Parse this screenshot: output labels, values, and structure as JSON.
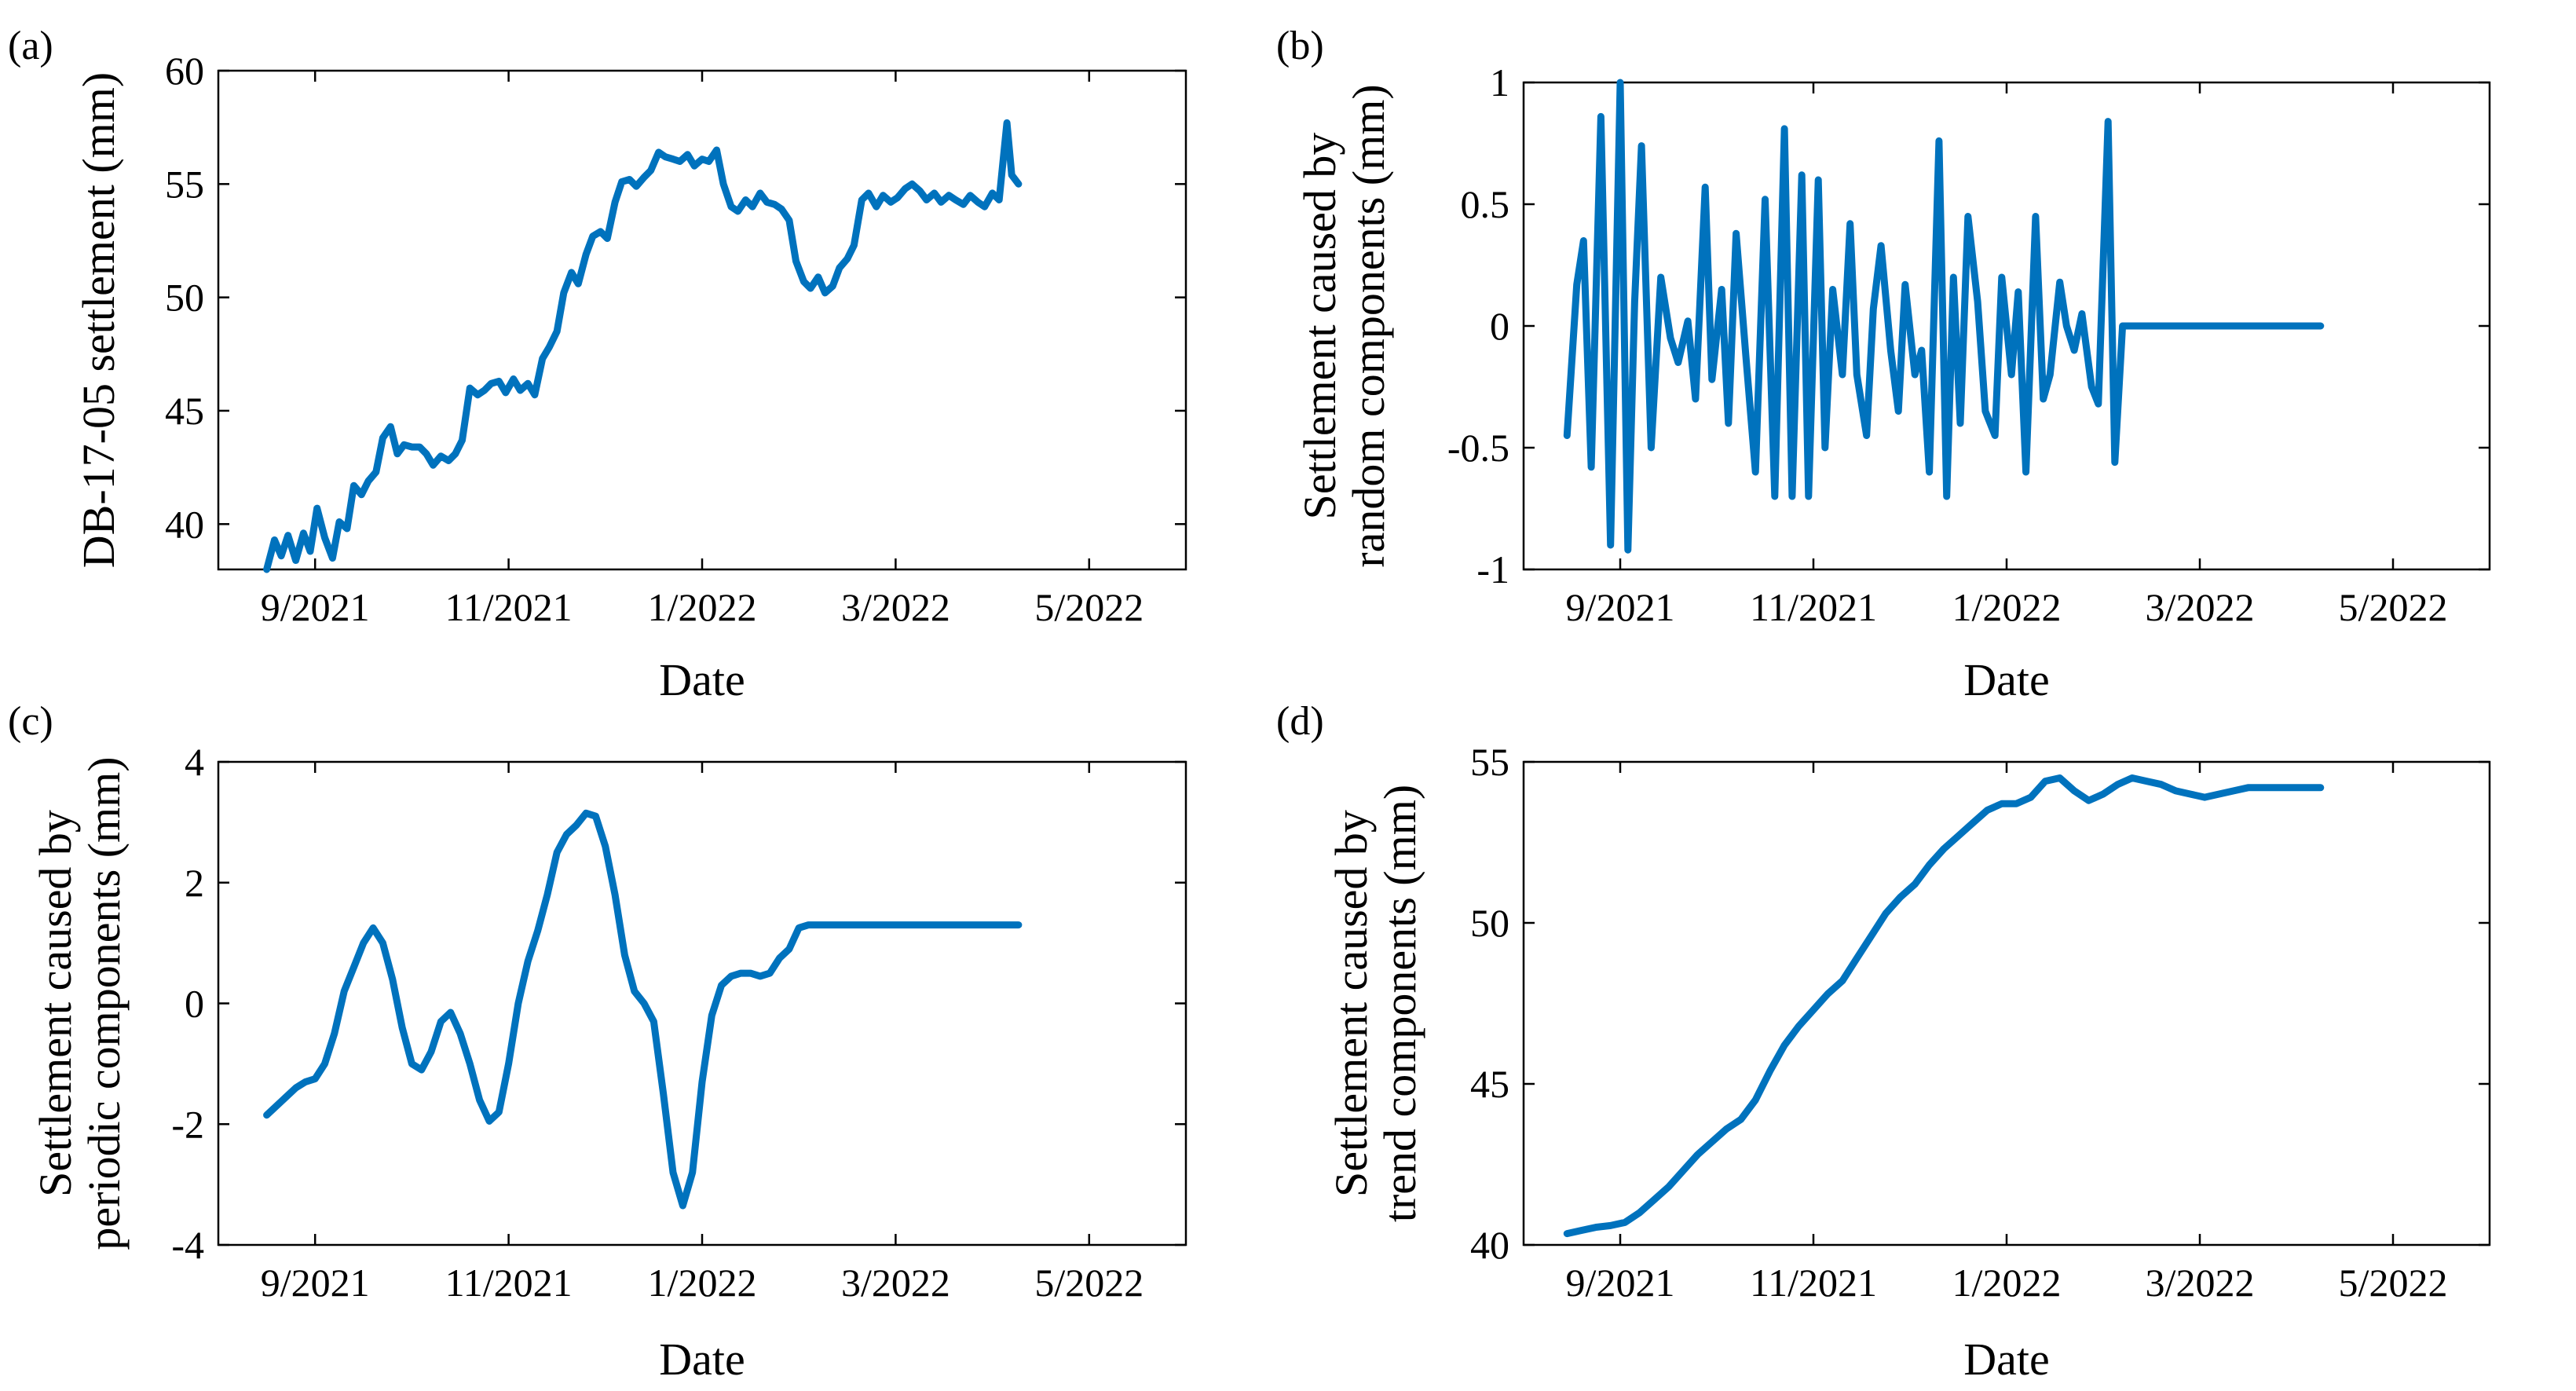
{
  "figure": {
    "series_color": "#0072BD",
    "panels": [
      {
        "label": "(a)",
        "ylabel": [
          "DB-17-05 settlement (mm)"
        ]
      },
      {
        "label": "(b)",
        "ylabel": [
          "Settlement caused by",
          "random components (mm)"
        ]
      },
      {
        "label": "(c)",
        "ylabel": [
          "Settlement caused by",
          "periodic components (mm)"
        ]
      },
      {
        "label": "(d)",
        "ylabel": [
          "Settlement caused by",
          "trend components (mm)"
        ]
      }
    ]
  },
  "chart_data": [
    {
      "type": "line",
      "panel": "(a)",
      "title": "",
      "xlabel": "Date",
      "ylabel": "DB-17-05 settlement (mm)",
      "x_ticks": [
        0,
        2,
        4,
        6,
        8,
        10
      ],
      "x_tick_labels": [
        "9/2021",
        "11/2021",
        "1/2022",
        "3/2022",
        "5/2022"
      ],
      "x_tick_values": [
        1,
        3,
        5,
        7,
        9
      ],
      "xlim": [
        0,
        10
      ],
      "ylim": [
        38,
        60
      ],
      "y_ticks": [
        40,
        45,
        50,
        55,
        60
      ],
      "grid": false,
      "series": [
        {
          "name": "DB-17-05 settlement",
          "x": [
            0.5,
            0.58,
            0.65,
            0.72,
            0.8,
            0.88,
            0.95,
            1.02,
            1.1,
            1.18,
            1.25,
            1.33,
            1.4,
            1.48,
            1.55,
            1.63,
            1.7,
            1.78,
            1.85,
            1.92,
            2.0,
            2.08,
            2.15,
            2.22,
            2.3,
            2.38,
            2.45,
            2.52,
            2.6,
            2.68,
            2.75,
            2.82,
            2.9,
            2.97,
            3.05,
            3.12,
            3.2,
            3.27,
            3.35,
            3.42,
            3.5,
            3.57,
            3.65,
            3.72,
            3.8,
            3.87,
            3.95,
            4.02,
            4.1,
            4.17,
            4.25,
            4.32,
            4.4,
            4.47,
            4.55,
            4.62,
            4.7,
            4.77,
            4.85,
            4.92,
            5.0,
            5.07,
            5.15,
            5.22,
            5.3,
            5.37,
            5.45,
            5.52,
            5.6,
            5.67,
            5.75,
            5.82,
            5.9,
            5.97,
            6.05,
            6.12,
            6.2,
            6.27,
            6.35,
            6.42,
            6.5,
            6.57,
            6.65,
            6.72,
            6.8,
            6.87,
            6.95,
            7.02,
            7.1,
            7.17,
            7.25,
            7.32,
            7.4,
            7.47,
            7.55,
            7.62,
            7.7,
            7.77,
            7.85,
            7.92,
            8.0,
            8.07,
            8.15,
            8.2,
            8.27
          ],
          "y": [
            38.0,
            39.3,
            38.6,
            39.5,
            38.4,
            39.6,
            38.8,
            40.7,
            39.4,
            38.5,
            40.1,
            39.8,
            41.7,
            41.3,
            41.9,
            42.3,
            43.8,
            44.3,
            43.1,
            43.5,
            43.4,
            43.4,
            43.1,
            42.6,
            43.0,
            42.8,
            43.1,
            43.7,
            46.0,
            45.7,
            45.9,
            46.2,
            46.3,
            45.8,
            46.4,
            45.9,
            46.2,
            45.7,
            47.3,
            47.8,
            48.5,
            50.2,
            51.1,
            50.6,
            51.9,
            52.7,
            52.9,
            52.6,
            54.2,
            55.1,
            55.2,
            54.9,
            55.3,
            55.6,
            56.4,
            56.2,
            56.1,
            56.0,
            56.3,
            55.8,
            56.1,
            56.0,
            56.5,
            55.0,
            54.0,
            53.8,
            54.3,
            54.0,
            54.6,
            54.2,
            54.1,
            53.9,
            53.4,
            51.6,
            50.7,
            50.4,
            50.9,
            50.2,
            50.5,
            51.3,
            51.7,
            52.3,
            54.3,
            54.6,
            54.0,
            54.5,
            54.2,
            54.4,
            54.8,
            55.0,
            54.7,
            54.3,
            54.6,
            54.2,
            54.5,
            54.3,
            54.1,
            54.5,
            54.2,
            54.0,
            54.6,
            54.3,
            57.7,
            55.4,
            55.0
          ]
        }
      ]
    },
    {
      "type": "line",
      "panel": "(b)",
      "title": "",
      "xlabel": "Date",
      "ylabel": "Settlement caused by random components (mm)",
      "x_tick_labels": [
        "9/2021",
        "11/2021",
        "1/2022",
        "3/2022",
        "5/2022"
      ],
      "x_tick_values": [
        1,
        3,
        5,
        7,
        9
      ],
      "xlim": [
        0,
        10
      ],
      "ylim": [
        -1,
        1
      ],
      "y_ticks": [
        -1,
        -0.5,
        0,
        0.5,
        1
      ],
      "y_tick_labels": [
        "-1",
        "-0.5",
        "0",
        "0.5",
        "1"
      ],
      "grid": false,
      "series": [
        {
          "name": "random components",
          "x": [
            0.45,
            0.55,
            0.62,
            0.7,
            0.8,
            0.9,
            1.0,
            1.08,
            1.15,
            1.22,
            1.32,
            1.42,
            1.52,
            1.6,
            1.7,
            1.78,
            1.88,
            1.95,
            2.05,
            2.12,
            2.2,
            2.3,
            2.4,
            2.5,
            2.6,
            2.7,
            2.78,
            2.88,
            2.95,
            3.05,
            3.12,
            3.2,
            3.3,
            3.38,
            3.45,
            3.55,
            3.62,
            3.7,
            3.8,
            3.88,
            3.95,
            4.05,
            4.12,
            4.2,
            4.3,
            4.38,
            4.45,
            4.52,
            4.6,
            4.7,
            4.78,
            4.88,
            4.95,
            5.05,
            5.12,
            5.2,
            5.3,
            5.38,
            5.45,
            5.55,
            5.62,
            5.7,
            5.78,
            5.88,
            5.95,
            6.05,
            6.12,
            6.2,
            6.3,
            6.38,
            6.45,
            6.52,
            6.6,
            6.68,
            6.75,
            6.85,
            6.92,
            7.0,
            7.08,
            7.15,
            7.22,
            7.3,
            7.38,
            7.45,
            7.52,
            7.6,
            7.68,
            7.75,
            7.85,
            7.92,
            8.0,
            8.08,
            8.15,
            8.25
          ],
          "y": [
            -0.45,
            0.17,
            0.35,
            -0.58,
            0.86,
            -0.9,
            1.0,
            -0.92,
            0.1,
            0.74,
            -0.5,
            0.2,
            -0.05,
            -0.15,
            0.02,
            -0.3,
            0.57,
            -0.22,
            0.15,
            -0.4,
            0.38,
            -0.12,
            -0.6,
            0.52,
            -0.7,
            0.81,
            -0.7,
            0.62,
            -0.7,
            0.6,
            -0.5,
            0.15,
            -0.2,
            0.42,
            -0.2,
            -0.45,
            0.07,
            0.33,
            -0.1,
            -0.35,
            0.17,
            -0.2,
            -0.1,
            -0.6,
            0.76,
            -0.7,
            0.2,
            -0.4,
            0.45,
            0.1,
            -0.35,
            -0.45,
            0.2,
            -0.2,
            0.14,
            -0.6,
            0.45,
            -0.3,
            -0.2,
            0.18,
            0.0,
            -0.1,
            0.05,
            -0.25,
            -0.32,
            0.84,
            -0.56,
            0.0,
            0.0,
            0.0,
            0.0,
            0.0,
            0.0,
            0.0,
            0.0,
            0.0,
            0.0,
            0.0,
            0.0,
            0.0,
            0.0,
            0.0,
            0.0,
            0.0,
            0.0,
            0.0,
            0.0,
            0.0,
            0.0,
            0.0,
            0.0,
            0.0,
            0.0,
            0.0
          ]
        }
      ]
    },
    {
      "type": "line",
      "panel": "(c)",
      "title": "",
      "xlabel": "Date",
      "ylabel": "Settlement caused by periodic components (mm)",
      "x_tick_labels": [
        "9/2021",
        "11/2021",
        "1/2022",
        "3/2022",
        "5/2022"
      ],
      "x_tick_values": [
        1,
        3,
        5,
        7,
        9
      ],
      "xlim": [
        0,
        10
      ],
      "ylim": [
        -4,
        4
      ],
      "y_ticks": [
        -4,
        -2,
        0,
        2,
        4
      ],
      "grid": false,
      "series": [
        {
          "name": "periodic components",
          "x": [
            0.5,
            0.6,
            0.7,
            0.8,
            0.9,
            1.0,
            1.1,
            1.2,
            1.3,
            1.4,
            1.5,
            1.6,
            1.7,
            1.8,
            1.9,
            2.0,
            2.1,
            2.2,
            2.3,
            2.4,
            2.5,
            2.6,
            2.7,
            2.8,
            2.9,
            3.0,
            3.1,
            3.2,
            3.3,
            3.4,
            3.5,
            3.6,
            3.7,
            3.8,
            3.9,
            4.0,
            4.1,
            4.2,
            4.3,
            4.4,
            4.5,
            4.6,
            4.7,
            4.8,
            4.9,
            5.0,
            5.1,
            5.2,
            5.3,
            5.4,
            5.5,
            5.6,
            5.7,
            5.8,
            5.9,
            6.0,
            6.1,
            6.2,
            6.3,
            6.4,
            6.5,
            6.6,
            6.7,
            6.8,
            6.9,
            7.0,
            7.1,
            7.2,
            7.3,
            7.4,
            7.5,
            7.6,
            7.7,
            7.8,
            7.9,
            8.0,
            8.1,
            8.2,
            8.27
          ],
          "y": [
            -1.85,
            -1.7,
            -1.55,
            -1.4,
            -1.3,
            -1.25,
            -1.0,
            -0.5,
            0.2,
            0.6,
            1.0,
            1.25,
            1.0,
            0.4,
            -0.4,
            -1.0,
            -1.1,
            -0.8,
            -0.3,
            -0.15,
            -0.5,
            -1.0,
            -1.6,
            -1.95,
            -1.8,
            -1.0,
            0.0,
            0.7,
            1.2,
            1.8,
            2.5,
            2.8,
            2.95,
            3.15,
            3.1,
            2.6,
            1.8,
            0.8,
            0.2,
            0.0,
            -0.3,
            -1.5,
            -2.8,
            -3.35,
            -2.8,
            -1.3,
            -0.2,
            0.3,
            0.45,
            0.5,
            0.5,
            0.45,
            0.5,
            0.75,
            0.9,
            1.25,
            1.3,
            1.3,
            1.3,
            1.3,
            1.3,
            1.3,
            1.3,
            1.3,
            1.3,
            1.3,
            1.3,
            1.3,
            1.3,
            1.3,
            1.3,
            1.3,
            1.3,
            1.3,
            1.3,
            1.3,
            1.3,
            1.3,
            1.3
          ]
        }
      ]
    },
    {
      "type": "line",
      "panel": "(d)",
      "title": "",
      "xlabel": "Date",
      "ylabel": "Settlement caused by trend components (mm)",
      "x_tick_labels": [
        "9/2021",
        "11/2021",
        "1/2022",
        "3/2022",
        "5/2022"
      ],
      "x_tick_values": [
        1,
        3,
        5,
        7,
        9
      ],
      "xlim": [
        0,
        10
      ],
      "ylim": [
        40,
        55
      ],
      "y_ticks": [
        40,
        45,
        50,
        55
      ],
      "grid": false,
      "series": [
        {
          "name": "trend components",
          "x": [
            0.45,
            0.6,
            0.75,
            0.9,
            1.05,
            1.2,
            1.35,
            1.5,
            1.65,
            1.8,
            1.95,
            2.1,
            2.25,
            2.4,
            2.55,
            2.7,
            2.85,
            3.0,
            3.15,
            3.3,
            3.45,
            3.6,
            3.75,
            3.9,
            4.05,
            4.2,
            4.35,
            4.5,
            4.65,
            4.8,
            4.95,
            5.1,
            5.25,
            5.4,
            5.55,
            5.7,
            5.85,
            6.0,
            6.15,
            6.3,
            6.45,
            6.6,
            6.75,
            6.9,
            7.05,
            7.2,
            7.35,
            7.5,
            7.65,
            7.8,
            7.95,
            8.1,
            8.25
          ],
          "y": [
            40.35,
            40.45,
            40.55,
            40.6,
            40.7,
            41.0,
            41.4,
            41.8,
            42.3,
            42.8,
            43.2,
            43.6,
            43.9,
            44.5,
            45.4,
            46.2,
            46.8,
            47.3,
            47.8,
            48.2,
            48.9,
            49.6,
            50.3,
            50.8,
            51.2,
            51.8,
            52.3,
            52.7,
            53.1,
            53.5,
            53.7,
            53.7,
            53.9,
            54.4,
            54.5,
            54.1,
            53.8,
            54.0,
            54.3,
            54.5,
            54.4,
            54.3,
            54.1,
            54.0,
            53.9,
            54.0,
            54.1,
            54.2,
            54.2,
            54.2,
            54.2,
            54.2,
            54.2
          ]
        }
      ]
    }
  ]
}
